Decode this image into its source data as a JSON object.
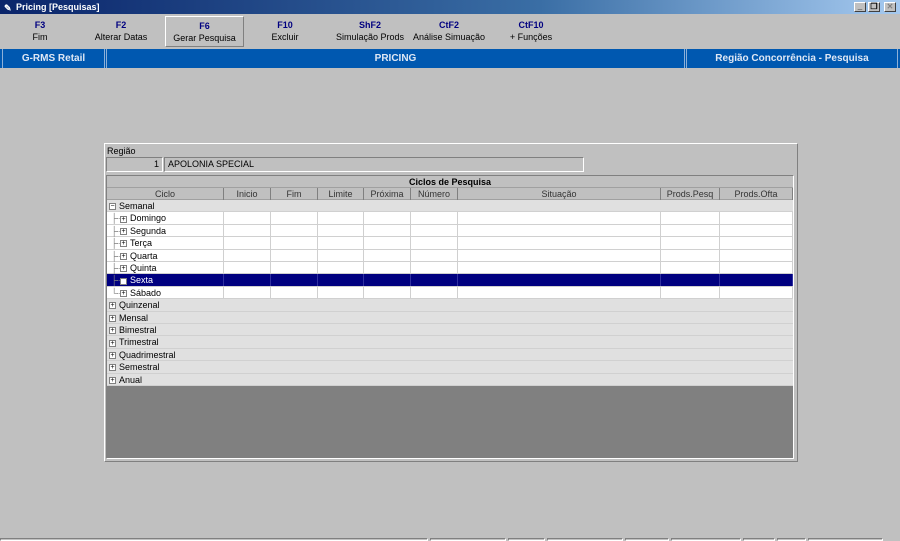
{
  "window": {
    "title": "Pricing [Pesquisas]",
    "icon": "pencil-icon"
  },
  "toolbar": [
    {
      "key": "F3",
      "label": "Fim"
    },
    {
      "key": "F2",
      "label": "Alterar Datas"
    },
    {
      "key": "F6",
      "label": "Gerar Pesquisa",
      "pressed": true
    },
    {
      "key": "F10",
      "label": "Excluir"
    },
    {
      "key": "ShF2",
      "label": "Simulação Prods"
    },
    {
      "key": "CtF2",
      "label": "Análise Simuação"
    },
    {
      "key": "CtF10",
      "label": "+ Funções"
    }
  ],
  "bluebar": {
    "left": "G-RMS Retail",
    "center": "PRICING",
    "right": "Região Concorrência - Pesquisa"
  },
  "regiao": {
    "label": "Região",
    "code": "1",
    "name": "APOLONIA SPECIAL"
  },
  "grid": {
    "title": "Ciclos de Pesquisa",
    "columns": [
      "Ciclo",
      "Inicio",
      "Fim",
      "Limite",
      "Próxima",
      "Número",
      "Situação",
      "Prods.Pesq",
      "Prods.Ofta"
    ],
    "rows": [
      {
        "label": "Semanal",
        "type": "group",
        "expanded": true
      },
      {
        "label": "Domingo",
        "type": "child"
      },
      {
        "label": "Segunda",
        "type": "child"
      },
      {
        "label": "Terça",
        "type": "child"
      },
      {
        "label": "Quarta",
        "type": "child"
      },
      {
        "label": "Quinta",
        "type": "child"
      },
      {
        "label": "Sexta",
        "type": "child",
        "selected": true
      },
      {
        "label": "Sábado",
        "type": "child",
        "last": true
      },
      {
        "label": "Quinzenal",
        "type": "group"
      },
      {
        "label": "Mensal",
        "type": "group"
      },
      {
        "label": "Bimestral",
        "type": "group"
      },
      {
        "label": "Trimestral",
        "type": "group"
      },
      {
        "label": "Quadrimestral",
        "type": "group"
      },
      {
        "label": "Semestral",
        "type": "group"
      },
      {
        "label": "Anual",
        "type": "group"
      }
    ]
  },
  "colors": {
    "selection": "#000080",
    "bluebar": "#0058b0",
    "toolbar_key": "#000080"
  }
}
